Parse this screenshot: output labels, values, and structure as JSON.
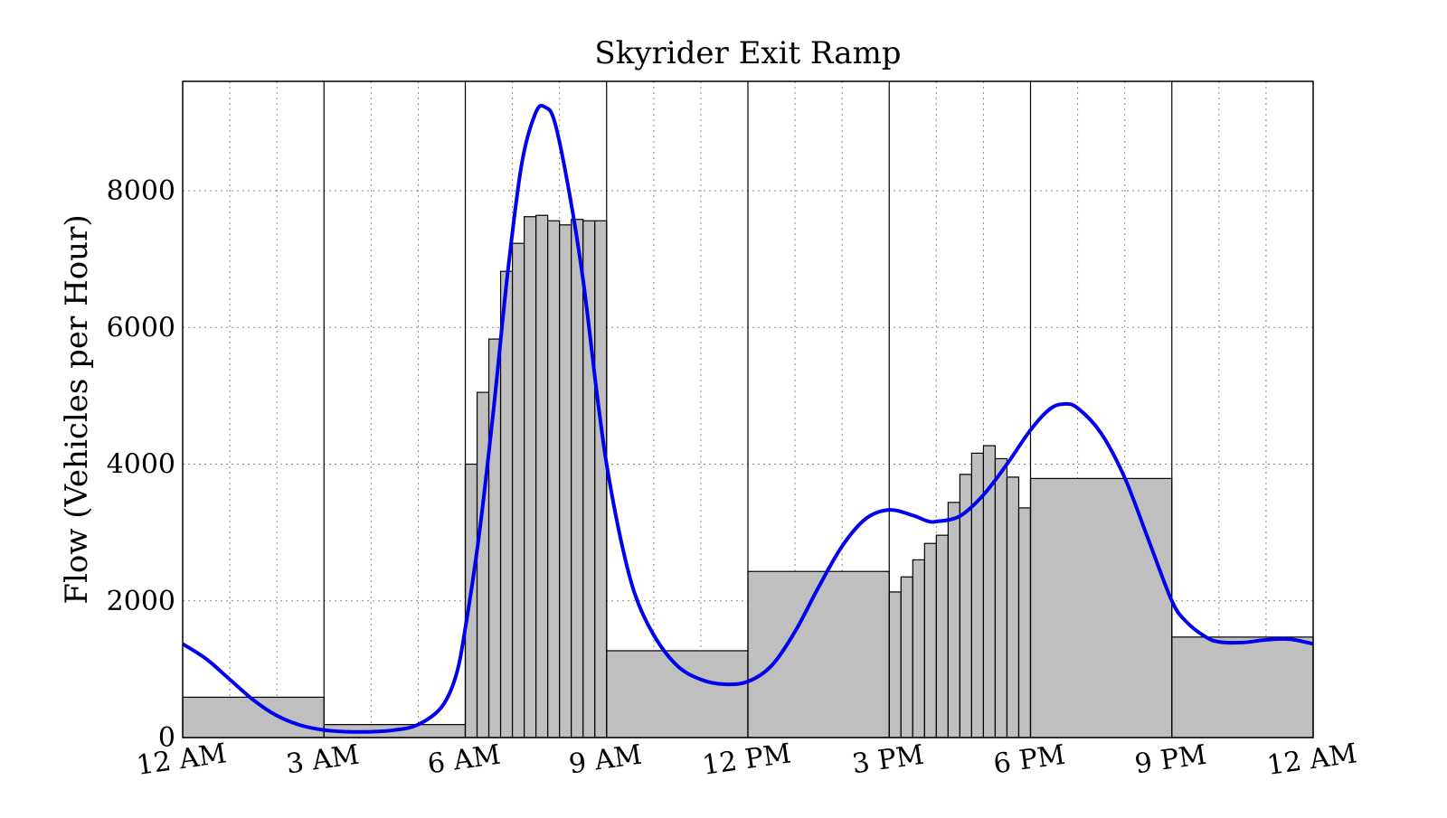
{
  "chart_data": {
    "type": "bar",
    "title": "Skyrider Exit Ramp",
    "ylabel": "Flow (Vehicles per Hour)",
    "xlabel": "",
    "xlim": [
      0,
      24
    ],
    "ylim": [
      0,
      9600
    ],
    "yticks": [
      0,
      2000,
      4000,
      6000,
      8000
    ],
    "xticks": [
      {
        "hour": 0,
        "label": "12 AM"
      },
      {
        "hour": 3,
        "label": "3 AM"
      },
      {
        "hour": 6,
        "label": "6 AM"
      },
      {
        "hour": 9,
        "label": "9 AM"
      },
      {
        "hour": 12,
        "label": "12 PM"
      },
      {
        "hour": 15,
        "label": "3 PM"
      },
      {
        "hour": 18,
        "label": "6 PM"
      },
      {
        "hour": 21,
        "label": "9 PM"
      },
      {
        "hour": 24,
        "label": "12 AM"
      }
    ],
    "grid": true,
    "bars": [
      {
        "start": 0,
        "end": 3,
        "value": 590
      },
      {
        "start": 3,
        "end": 6,
        "value": 190
      },
      {
        "start": 6.0,
        "end": 6.25,
        "value": 4000
      },
      {
        "start": 6.25,
        "end": 6.5,
        "value": 5050
      },
      {
        "start": 6.5,
        "end": 6.75,
        "value": 5830
      },
      {
        "start": 6.75,
        "end": 7.0,
        "value": 6820
      },
      {
        "start": 7.0,
        "end": 7.25,
        "value": 7230
      },
      {
        "start": 7.25,
        "end": 7.5,
        "value": 7620
      },
      {
        "start": 7.5,
        "end": 7.75,
        "value": 7640
      },
      {
        "start": 7.75,
        "end": 8.0,
        "value": 7560
      },
      {
        "start": 8.0,
        "end": 8.25,
        "value": 7500
      },
      {
        "start": 8.25,
        "end": 8.5,
        "value": 7580
      },
      {
        "start": 8.5,
        "end": 8.75,
        "value": 7560
      },
      {
        "start": 8.75,
        "end": 9.0,
        "value": 7560
      },
      {
        "start": 9,
        "end": 12,
        "value": 1270
      },
      {
        "start": 12,
        "end": 15,
        "value": 2430
      },
      {
        "start": 15.0,
        "end": 15.25,
        "value": 2130
      },
      {
        "start": 15.25,
        "end": 15.5,
        "value": 2350
      },
      {
        "start": 15.5,
        "end": 15.75,
        "value": 2600
      },
      {
        "start": 15.75,
        "end": 16.0,
        "value": 2840
      },
      {
        "start": 16.0,
        "end": 16.25,
        "value": 2960
      },
      {
        "start": 16.25,
        "end": 16.5,
        "value": 3440
      },
      {
        "start": 16.5,
        "end": 16.75,
        "value": 3850
      },
      {
        "start": 16.75,
        "end": 17.0,
        "value": 4160
      },
      {
        "start": 17.0,
        "end": 17.25,
        "value": 4270
      },
      {
        "start": 17.25,
        "end": 17.5,
        "value": 4080
      },
      {
        "start": 17.5,
        "end": 17.75,
        "value": 3810
      },
      {
        "start": 17.75,
        "end": 18.0,
        "value": 3360
      },
      {
        "start": 18,
        "end": 21,
        "value": 3790
      },
      {
        "start": 21,
        "end": 24,
        "value": 1470
      }
    ],
    "separators": [
      3,
      6,
      9,
      12,
      15,
      18,
      21
    ],
    "curve": {
      "color": "#0000ee",
      "points": [
        [
          0,
          1370
        ],
        [
          0.5,
          1150
        ],
        [
          1,
          850
        ],
        [
          1.5,
          550
        ],
        [
          2,
          320
        ],
        [
          2.5,
          180
        ],
        [
          3,
          110
        ],
        [
          3.5,
          85
        ],
        [
          4,
          85
        ],
        [
          4.5,
          110
        ],
        [
          5,
          190
        ],
        [
          5.5,
          450
        ],
        [
          5.8,
          900
        ],
        [
          6,
          1600
        ],
        [
          6.3,
          3000
        ],
        [
          6.6,
          4800
        ],
        [
          6.9,
          6800
        ],
        [
          7.2,
          8400
        ],
        [
          7.5,
          9150
        ],
        [
          7.7,
          9220
        ],
        [
          7.9,
          9000
        ],
        [
          8.2,
          8000
        ],
        [
          8.5,
          6700
        ],
        [
          8.8,
          5000
        ],
        [
          9,
          4000
        ],
        [
          9.3,
          2900
        ],
        [
          9.6,
          2100
        ],
        [
          10,
          1500
        ],
        [
          10.5,
          1050
        ],
        [
          11,
          850
        ],
        [
          11.5,
          780
        ],
        [
          12,
          820
        ],
        [
          12.5,
          1050
        ],
        [
          13,
          1550
        ],
        [
          13.5,
          2200
        ],
        [
          14,
          2800
        ],
        [
          14.5,
          3200
        ],
        [
          15,
          3330
        ],
        [
          15.5,
          3250
        ],
        [
          15.8,
          3170
        ],
        [
          16,
          3160
        ],
        [
          16.5,
          3240
        ],
        [
          17,
          3550
        ],
        [
          17.5,
          4000
        ],
        [
          18,
          4500
        ],
        [
          18.4,
          4800
        ],
        [
          18.7,
          4880
        ],
        [
          19,
          4820
        ],
        [
          19.5,
          4450
        ],
        [
          20,
          3800
        ],
        [
          20.5,
          2900
        ],
        [
          21,
          2000
        ],
        [
          21.3,
          1700
        ],
        [
          21.7,
          1480
        ],
        [
          22,
          1400
        ],
        [
          22.5,
          1390
        ],
        [
          23,
          1430
        ],
        [
          23.5,
          1440
        ],
        [
          24,
          1370
        ]
      ]
    }
  }
}
